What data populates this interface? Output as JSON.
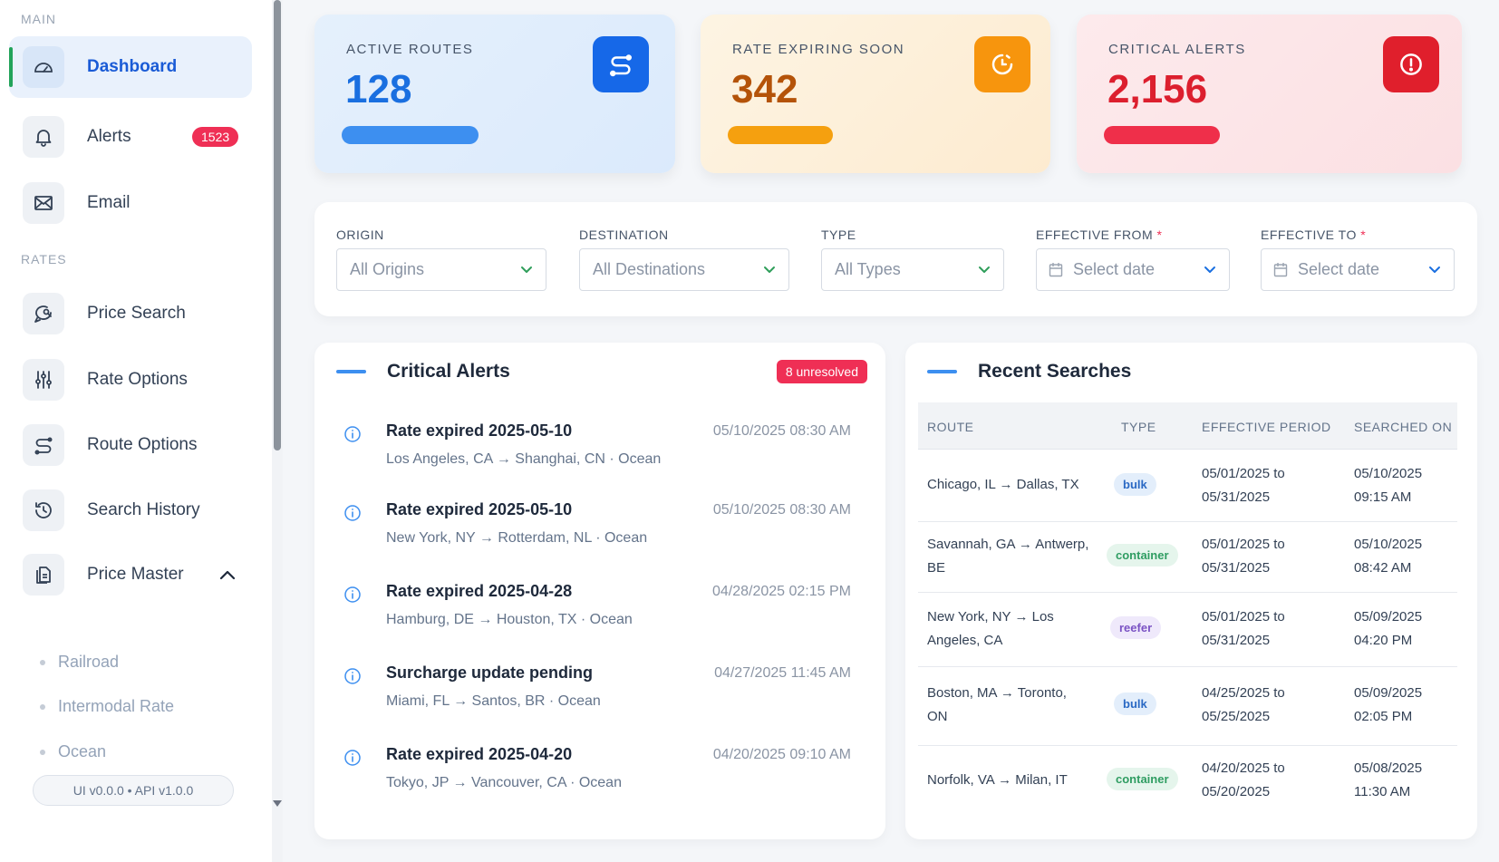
{
  "sidebar": {
    "section_main": "MAIN",
    "section_rates": "RATES",
    "items": [
      {
        "label": "Dashboard"
      },
      {
        "label": "Alerts",
        "badge": "1523"
      },
      {
        "label": "Email"
      },
      {
        "label": "Price Search"
      },
      {
        "label": "Rate Options"
      },
      {
        "label": "Route Options"
      },
      {
        "label": "Search History"
      },
      {
        "label": "Price Master"
      }
    ],
    "sub_items": [
      "Railroad",
      "Intermodal Rate",
      "Ocean"
    ],
    "version": "UI v0.0.0 • API v1.0.0"
  },
  "stats": [
    {
      "title": "ACTIVE ROUTES",
      "value": "128",
      "color": "#1a6fe0",
      "fill": 0.38
    },
    {
      "title": "RATE EXPIRING SOON",
      "value": "342",
      "color": "#b45309",
      "fill": 0.3
    },
    {
      "title": "CRITICAL ALERTS",
      "value": "2,156",
      "color": "#dc1f2e",
      "fill": 0.3
    }
  ],
  "filters": {
    "origin": {
      "label": "ORIGIN",
      "value": "All Origins"
    },
    "destination": {
      "label": "DESTINATION",
      "value": "All Destinations"
    },
    "type": {
      "label": "TYPE",
      "value": "All Types"
    },
    "effective_from": {
      "label": "EFFECTIVE FROM",
      "required": "*",
      "placeholder": "Select date"
    },
    "effective_to": {
      "label": "EFFECTIVE TO",
      "required": "*",
      "placeholder": "Select date"
    }
  },
  "alerts_panel": {
    "title": "Critical Alerts",
    "badge": "8 unresolved",
    "items": [
      {
        "title": "Rate expired 2025-05-10",
        "time": "05/10/2025 08:30 AM",
        "sub": "Los Angeles, CA → Shanghai, CN · Ocean"
      },
      {
        "title": "Rate expired 2025-05-10",
        "time": "05/10/2025 08:30 AM",
        "sub": "New York, NY → Rotterdam, NL · Ocean"
      },
      {
        "title": "Rate expired 2025-04-28",
        "time": "04/28/2025 02:15 PM",
        "sub": "Hamburg, DE → Houston, TX · Ocean"
      },
      {
        "title": "Surcharge update pending",
        "time": "04/27/2025 11:45 AM",
        "sub": "Miami, FL → Santos, BR · Ocean"
      },
      {
        "title": "Rate expired 2025-04-20",
        "time": "04/20/2025 09:10 AM",
        "sub": "Tokyo, JP → Vancouver, CA · Ocean"
      }
    ]
  },
  "searches_panel": {
    "title": "Recent Searches",
    "columns": [
      "ROUTE",
      "TYPE",
      "EFFECTIVE PERIOD",
      "SEARCHED ON"
    ],
    "rows": [
      {
        "route1": "Chicago, IL → Dallas, TX",
        "route2": "",
        "type": "bulk",
        "period1": "05/01/2025 to",
        "period2": "05/31/2025",
        "searched1": "05/10/2025",
        "searched2": "09:15 AM"
      },
      {
        "route1": "Savannah, GA → Antwerp,",
        "route2": "BE",
        "type": "container",
        "period1": "05/01/2025 to",
        "period2": "05/31/2025",
        "searched1": "05/10/2025",
        "searched2": "08:42 AM"
      },
      {
        "route1": "New York, NY → Los",
        "route2": "Angeles, CA",
        "type": "reefer",
        "period1": "05/01/2025 to",
        "period2": "05/31/2025",
        "searched1": "05/09/2025",
        "searched2": "04:20 PM"
      },
      {
        "route1": "Boston, MA → Toronto,",
        "route2": "ON",
        "type": "bulk",
        "period1": "04/25/2025 to",
        "period2": "05/25/2025",
        "searched1": "05/09/2025",
        "searched2": "02:05 PM"
      },
      {
        "route1": "Norfolk, VA → Milan, IT",
        "route2": "",
        "type": "container",
        "period1": "04/20/2025 to",
        "period2": "05/20/2025",
        "searched1": "05/08/2025",
        "searched2": "11:30 AM"
      }
    ]
  }
}
